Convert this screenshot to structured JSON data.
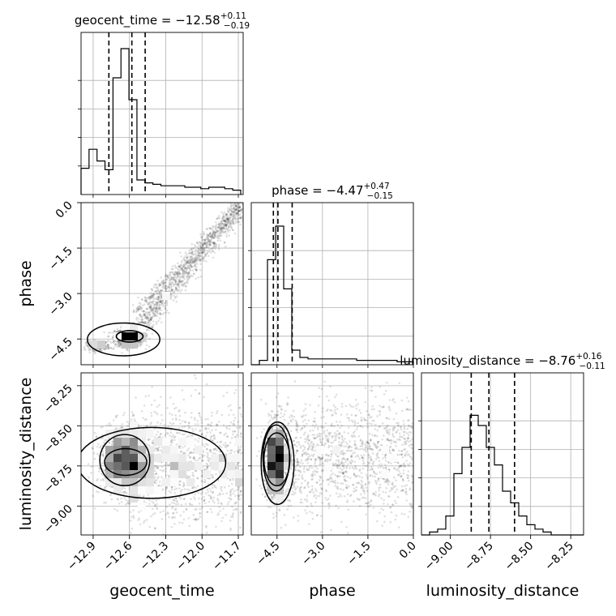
{
  "chart_data": {
    "type": "corner",
    "parameters": [
      "geocent_time",
      "phase",
      "luminosity_distance"
    ],
    "axis_labels": {
      "geocent_time": "geocent_time",
      "phase": "phase",
      "luminosity_distance": "luminosity_distance"
    },
    "ranges": {
      "geocent_time": [
        -13.0,
        -11.66
      ],
      "phase": [
        -5.35,
        0.0
      ],
      "luminosity_distance": [
        -9.18,
        -8.17
      ]
    },
    "ticks": {
      "geocent_time": [
        -12.9,
        -12.6,
        -12.3,
        -12.0,
        -11.7
      ],
      "phase": [
        -4.5,
        -3.0,
        -1.5,
        0.0
      ],
      "luminosity_distance": [
        -9.0,
        -8.75,
        -8.5,
        -8.25
      ]
    },
    "tick_labels": {
      "geocent_time": [
        "−12.9",
        "−12.6",
        "−12.3",
        "−12.0",
        "−11.7"
      ],
      "phase": [
        "−4.5",
        "−3.0",
        "−1.5",
        "0.0"
      ],
      "luminosity_distance": [
        "−9.00",
        "−8.75",
        "−8.50",
        "−8.25"
      ]
    },
    "titles": {
      "geocent_time": {
        "prefix": "geocent_time = ",
        "median": "−12.58",
        "plus": "+0.11",
        "minus": "−0.19"
      },
      "phase": {
        "prefix": "phase = ",
        "median": "−4.47",
        "plus": "+0.47",
        "minus": "−0.15"
      },
      "luminosity_distance": {
        "prefix": "luminosity_distance = ",
        "median": "−8.76",
        "plus": "+0.16",
        "minus": "−0.11"
      }
    },
    "quantiles": {
      "geocent_time": [
        -12.77,
        -12.58,
        -12.47
      ],
      "phase": [
        -4.62,
        -4.47,
        -4.0
      ],
      "luminosity_distance": [
        -8.87,
        -8.76,
        -8.6
      ]
    },
    "histograms": {
      "geocent_time": {
        "edges": [
          -13.0,
          -12.934,
          -12.868,
          -12.802,
          -12.736,
          -12.67,
          -12.604,
          -12.538,
          -12.472,
          -12.406,
          -12.34,
          -12.274,
          -12.208,
          -12.142,
          -12.076,
          -12.01,
          -11.944,
          -11.878,
          -11.812,
          -11.746,
          -11.68
        ],
        "values": [
          0.18,
          0.31,
          0.23,
          0.17,
          0.8,
          1.0,
          0.65,
          0.1,
          0.08,
          0.07,
          0.06,
          0.06,
          0.06,
          0.05,
          0.05,
          0.04,
          0.05,
          0.05,
          0.04,
          0.03
        ]
      },
      "phase": {
        "edges": [
          -5.35,
          -5.0825,
          -4.815,
          -4.5475,
          -4.28,
          -4.0125,
          -3.745,
          -3.4775,
          -3.21,
          -2.9425,
          -2.675,
          -2.4075,
          -2.14,
          -1.8725,
          -1.605,
          -1.3375,
          -1.07,
          -0.8025,
          -0.535,
          -0.2675,
          0.0
        ],
        "values": [
          0.0,
          0.03,
          0.72,
          0.95,
          0.52,
          0.1,
          0.05,
          0.04,
          0.04,
          0.04,
          0.04,
          0.04,
          0.04,
          0.03,
          0.03,
          0.03,
          0.03,
          0.03,
          0.02,
          0.02
        ]
      },
      "luminosity_distance": {
        "edges": [
          -9.18,
          -9.1295,
          -9.079,
          -9.0285,
          -8.978,
          -8.9275,
          -8.877,
          -8.8265,
          -8.776,
          -8.7255,
          -8.675,
          -8.6245,
          -8.574,
          -8.5235,
          -8.473,
          -8.4225,
          -8.372,
          -8.3215,
          -8.271,
          -8.2205,
          -8.17
        ],
        "values": [
          0.0,
          0.02,
          0.04,
          0.13,
          0.42,
          0.6,
          0.82,
          0.75,
          0.6,
          0.48,
          0.3,
          0.22,
          0.13,
          0.07,
          0.04,
          0.02,
          0.0,
          0.0,
          0.0,
          0.0
        ]
      }
    },
    "grid": true,
    "density_color": "#000000",
    "line_color": "#000000"
  }
}
